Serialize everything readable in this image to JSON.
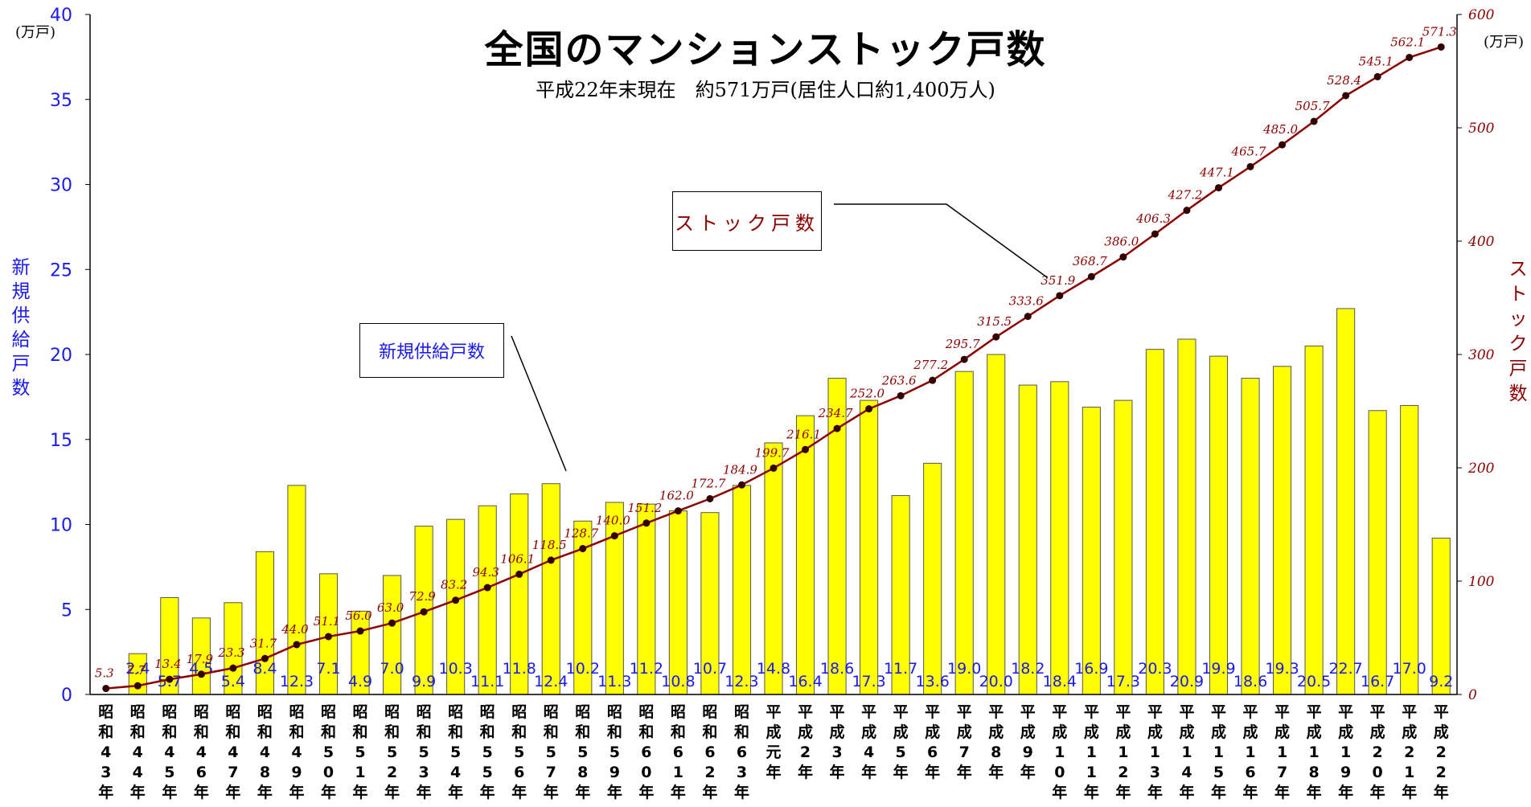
{
  "chart_data": {
    "type": "bar+line",
    "title": "全国のマンションストック戸数",
    "subtitle": "平成22年末現在　約571万戸(居住人口約1,400万人)",
    "left_axis": {
      "label": "新規供給戸数",
      "unit": "(万戸)",
      "ylim": [
        0,
        40
      ],
      "ticks": [
        0,
        5,
        10,
        15,
        20,
        25,
        30,
        35,
        40
      ],
      "color": "#1a1aee"
    },
    "right_axis": {
      "label": "ストック戸数",
      "unit": "(万戸)",
      "ylim": [
        0,
        600
      ],
      "ticks": [
        0,
        100,
        200,
        300,
        400,
        500,
        600
      ],
      "color": "#8b0000"
    },
    "categories": [
      "昭和43年",
      "昭和44年",
      "昭和45年",
      "昭和46年",
      "昭和47年",
      "昭和48年",
      "昭和49年",
      "昭和50年",
      "昭和51年",
      "昭和52年",
      "昭和53年",
      "昭和54年",
      "昭和55年",
      "昭和56年",
      "昭和57年",
      "昭和58年",
      "昭和59年",
      "昭和60年",
      "昭和61年",
      "昭和62年",
      "昭和63年",
      "平成元年",
      "平成2年",
      "平成3年",
      "平成4年",
      "平成5年",
      "平成6年",
      "平成7年",
      "平成8年",
      "平成9年",
      "平成10年",
      "平成11年",
      "平成12年",
      "平成13年",
      "平成14年",
      "平成15年",
      "平成16年",
      "平成17年",
      "平成18年",
      "平成19年",
      "平成20年",
      "平成21年",
      "平成22年"
    ],
    "x_tick_labels": [
      [
        "昭",
        "和",
        "4",
        "3",
        "年"
      ],
      [
        "昭",
        "和",
        "4",
        "4",
        "年"
      ],
      [
        "昭",
        "和",
        "4",
        "5",
        "年"
      ],
      [
        "昭",
        "和",
        "4",
        "6",
        "年"
      ],
      [
        "昭",
        "和",
        "4",
        "7",
        "年"
      ],
      [
        "昭",
        "和",
        "4",
        "8",
        "年"
      ],
      [
        "昭",
        "和",
        "4",
        "9",
        "年"
      ],
      [
        "昭",
        "和",
        "5",
        "0",
        "年"
      ],
      [
        "昭",
        "和",
        "5",
        "1",
        "年"
      ],
      [
        "昭",
        "和",
        "5",
        "2",
        "年"
      ],
      [
        "昭",
        "和",
        "5",
        "3",
        "年"
      ],
      [
        "昭",
        "和",
        "5",
        "4",
        "年"
      ],
      [
        "昭",
        "和",
        "5",
        "5",
        "年"
      ],
      [
        "昭",
        "和",
        "5",
        "6",
        "年"
      ],
      [
        "昭",
        "和",
        "5",
        "7",
        "年"
      ],
      [
        "昭",
        "和",
        "5",
        "8",
        "年"
      ],
      [
        "昭",
        "和",
        "5",
        "9",
        "年"
      ],
      [
        "昭",
        "和",
        "6",
        "0",
        "年"
      ],
      [
        "昭",
        "和",
        "6",
        "1",
        "年"
      ],
      [
        "昭",
        "和",
        "6",
        "2",
        "年"
      ],
      [
        "昭",
        "和",
        "6",
        "3",
        "年"
      ],
      [
        "平",
        "成",
        "元",
        "年"
      ],
      [
        "平",
        "成",
        "2",
        "年"
      ],
      [
        "平",
        "成",
        "3",
        "年"
      ],
      [
        "平",
        "成",
        "4",
        "年"
      ],
      [
        "平",
        "成",
        "5",
        "年"
      ],
      [
        "平",
        "成",
        "6",
        "年"
      ],
      [
        "平",
        "成",
        "7",
        "年"
      ],
      [
        "平",
        "成",
        "8",
        "年"
      ],
      [
        "平",
        "成",
        "9",
        "年"
      ],
      [
        "平",
        "成",
        "1",
        "0",
        "年"
      ],
      [
        "平",
        "成",
        "1",
        "1",
        "年"
      ],
      [
        "平",
        "成",
        "1",
        "2",
        "年"
      ],
      [
        "平",
        "成",
        "1",
        "3",
        "年"
      ],
      [
        "平",
        "成",
        "1",
        "4",
        "年"
      ],
      [
        "平",
        "成",
        "1",
        "5",
        "年"
      ],
      [
        "平",
        "成",
        "1",
        "6",
        "年"
      ],
      [
        "平",
        "成",
        "1",
        "7",
        "年"
      ],
      [
        "平",
        "成",
        "1",
        "8",
        "年"
      ],
      [
        "平",
        "成",
        "1",
        "9",
        "年"
      ],
      [
        "平",
        "成",
        "2",
        "0",
        "年"
      ],
      [
        "平",
        "成",
        "2",
        "1",
        "年"
      ],
      [
        "平",
        "成",
        "2",
        "2",
        "年"
      ]
    ],
    "series": [
      {
        "name": "新規供給戸数",
        "type": "bar",
        "axis": "left",
        "color": "#ffff00",
        "values": [
          null,
          2.4,
          5.7,
          4.5,
          5.4,
          8.4,
          12.3,
          7.1,
          4.9,
          7.0,
          9.9,
          10.3,
          11.1,
          11.8,
          12.4,
          10.2,
          11.3,
          11.2,
          10.8,
          10.7,
          12.3,
          14.8,
          16.4,
          18.6,
          17.3,
          11.7,
          13.6,
          19.0,
          20.0,
          18.2,
          18.4,
          16.9,
          17.3,
          20.3,
          20.9,
          19.9,
          18.6,
          19.3,
          20.5,
          22.7,
          16.7,
          17.0,
          9.2
        ],
        "labels": [
          "",
          "2.4",
          "5.7",
          "4.5",
          "5.4",
          "8.4",
          "12.3",
          "7.1",
          "4.9",
          "7.0",
          "9.9",
          "10.3",
          "11.1",
          "11.8",
          "12.4",
          "10.2",
          "11.3",
          "11.2",
          "10.8",
          "10.7",
          "12.3",
          "14.8",
          "16.4",
          "18.6",
          "17.3",
          "11.7",
          "13.6",
          "19.0",
          "20.0",
          "18.2",
          "18.4",
          "16.9",
          "17.3",
          "20.3",
          "20.9",
          "19.9",
          "18.6",
          "19.3",
          "20.5",
          "22.7",
          "16.7",
          "17.0",
          "9.2"
        ]
      },
      {
        "name": "ストック戸数",
        "type": "line",
        "axis": "right",
        "color": "#8b0000",
        "values": [
          5.3,
          7.7,
          13.4,
          17.9,
          23.3,
          31.7,
          44.0,
          51.1,
          56.0,
          63.0,
          72.9,
          83.2,
          94.3,
          106.1,
          118.5,
          128.7,
          140.0,
          151.2,
          162.0,
          172.7,
          184.9,
          199.7,
          216.1,
          234.7,
          252.0,
          263.6,
          277.2,
          295.7,
          315.5,
          333.6,
          351.9,
          368.7,
          386.0,
          406.3,
          427.2,
          447.1,
          465.7,
          485.0,
          505.7,
          528.4,
          545.1,
          562.1,
          571.3
        ],
        "labels": [
          "5.3",
          "7.7",
          "13.4",
          "17.9",
          "23.3",
          "31.7",
          "44.0",
          "51.1",
          "56.0",
          "63.0",
          "72.9",
          "83.2",
          "94.3",
          "106.1",
          "118.5",
          "128.7",
          "140.0",
          "151.2",
          "162.0",
          "172.7",
          "184.9",
          "199.7",
          "216.1",
          "234.7",
          "252.0",
          "263.6",
          "277.2",
          "295.7",
          "315.5",
          "333.6",
          "351.9",
          "368.7",
          "386.0",
          "406.3",
          "427.2",
          "447.1",
          "465.7",
          "485.0",
          "505.7",
          "528.4",
          "545.1",
          "562.1",
          "571.3"
        ]
      }
    ],
    "annotations": [
      {
        "text": "ストック戸数",
        "points_to": "line"
      },
      {
        "text": "新規供給戸数",
        "points_to": "bars"
      }
    ],
    "grid": false,
    "legend": "none"
  }
}
